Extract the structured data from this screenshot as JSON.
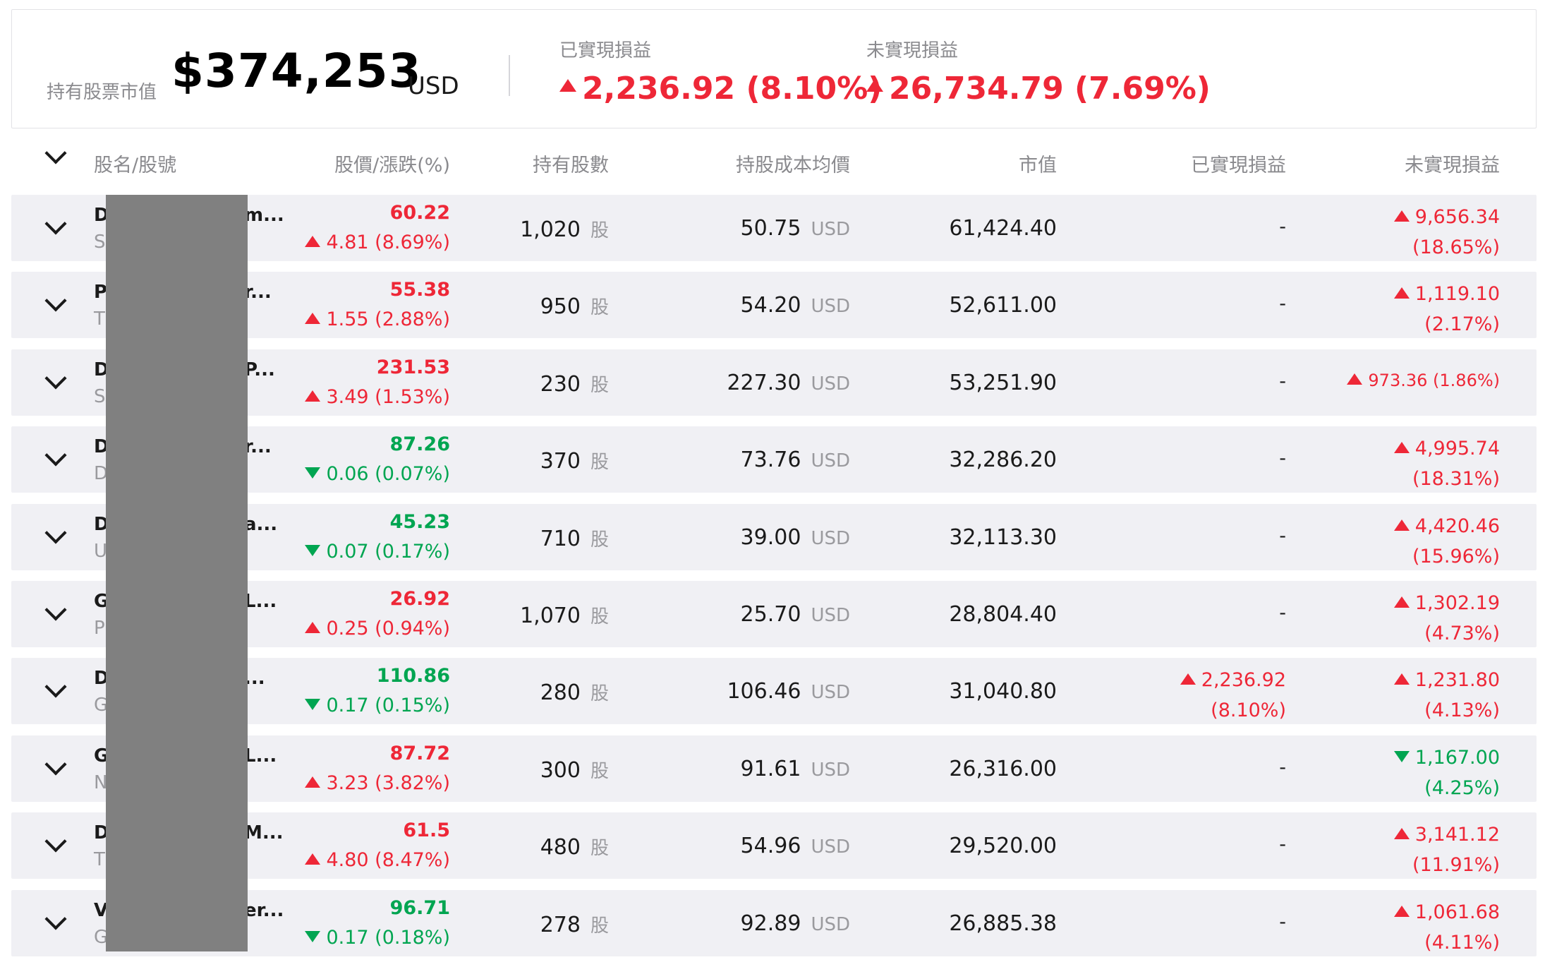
{
  "summary": {
    "label": "持有股票市值",
    "value": "$374,253",
    "currency": "USD",
    "realized_label": "已實現損益",
    "realized_value": "2,236.92 (8.10%)",
    "unrealized_label": "未實現損益",
    "unrealized_value": "26,734.79 (7.69%)"
  },
  "columns": {
    "name": "股名/股號",
    "price": "股價/漲跌(%)",
    "shares": "持有股數",
    "avg_cost": "持股成本均價",
    "market_value": "市值",
    "realized": "已實現損益",
    "unrealized": "未實現損益"
  },
  "share_unit": "股",
  "cost_currency": "USD",
  "colors": {
    "up": "#ee2737",
    "down": "#00a551",
    "row_bg": "#f0f0f4",
    "redaction": "#808080"
  },
  "rows": [
    {
      "name_start": "D",
      "name_end": "m...",
      "code_start": "S",
      "price": "60.22",
      "dir": "up",
      "change": "4.81",
      "pct": "(8.69%)",
      "shares": "1,020",
      "cost": "50.75",
      "mkt": "61,424.40",
      "realized": "-",
      "realized_pct": "",
      "realized_dir": "",
      "unrealized": "9,656.34",
      "unrealized_pct": "(18.65%)",
      "unrealized_dir": "up"
    },
    {
      "name_start": "P",
      "name_end": "r...",
      "code_start": "T",
      "price": "55.38",
      "dir": "up",
      "change": "1.55",
      "pct": "(2.88%)",
      "shares": "950",
      "cost": "54.20",
      "mkt": "52,611.00",
      "realized": "-",
      "realized_pct": "",
      "realized_dir": "",
      "unrealized": "1,119.10",
      "unrealized_pct": "(2.17%)",
      "unrealized_dir": "up"
    },
    {
      "name_start": "D",
      "name_end": "P...",
      "code_start": "S",
      "price": "231.53",
      "dir": "up",
      "change": "3.49",
      "pct": "(1.53%)",
      "shares": "230",
      "cost": "227.30",
      "mkt": "53,251.90",
      "realized": "-",
      "realized_pct": "",
      "realized_dir": "",
      "unrealized": "973.36",
      "unrealized_pct": "(1.86%)",
      "unrealized_dir": "up",
      "unrealized_single": true
    },
    {
      "name_start": "D",
      "name_end": "r...",
      "code_start": "D",
      "price": "87.26",
      "dir": "down",
      "change": "0.06",
      "pct": "(0.07%)",
      "shares": "370",
      "cost": "73.76",
      "mkt": "32,286.20",
      "realized": "-",
      "realized_pct": "",
      "realized_dir": "",
      "unrealized": "4,995.74",
      "unrealized_pct": "(18.31%)",
      "unrealized_dir": "up"
    },
    {
      "name_start": "D",
      "name_end": "a...",
      "code_start": "U",
      "price": "45.23",
      "dir": "down",
      "change": "0.07",
      "pct": "(0.17%)",
      "shares": "710",
      "cost": "39.00",
      "mkt": "32,113.30",
      "realized": "-",
      "realized_pct": "",
      "realized_dir": "",
      "unrealized": "4,420.46",
      "unrealized_pct": "(15.96%)",
      "unrealized_dir": "up"
    },
    {
      "name_start": "G",
      "name_end": "L...",
      "code_start": "P",
      "price": "26.92",
      "dir": "up",
      "change": "0.25",
      "pct": "(0.94%)",
      "shares": "1,070",
      "cost": "25.70",
      "mkt": "28,804.40",
      "realized": "-",
      "realized_pct": "",
      "realized_dir": "",
      "unrealized": "1,302.19",
      "unrealized_pct": "(4.73%)",
      "unrealized_dir": "up"
    },
    {
      "name_start": "D",
      "name_end": "...",
      "code_start": "G",
      "price": "110.86",
      "dir": "down",
      "change": "0.17",
      "pct": "(0.15%)",
      "shares": "280",
      "cost": "106.46",
      "mkt": "31,040.80",
      "realized": "2,236.92",
      "realized_pct": "(8.10%)",
      "realized_dir": "up",
      "unrealized": "1,231.80",
      "unrealized_pct": "(4.13%)",
      "unrealized_dir": "up"
    },
    {
      "name_start": "G",
      "name_end": "L...",
      "code_start": "N",
      "price": "87.72",
      "dir": "up",
      "change": "3.23",
      "pct": "(3.82%)",
      "shares": "300",
      "cost": "91.61",
      "mkt": "26,316.00",
      "realized": "-",
      "realized_pct": "",
      "realized_dir": "",
      "unrealized": "1,167.00",
      "unrealized_pct": "(4.25%)",
      "unrealized_dir": "down"
    },
    {
      "name_start": "D",
      "name_end": "M...",
      "code_start": "T",
      "price": "61.5",
      "dir": "up",
      "change": "4.80",
      "pct": "(8.47%)",
      "shares": "480",
      "cost": "54.96",
      "mkt": "29,520.00",
      "realized": "-",
      "realized_pct": "",
      "realized_dir": "",
      "unrealized": "3,141.12",
      "unrealized_pct": "(11.91%)",
      "unrealized_dir": "up"
    },
    {
      "name_start": "V",
      "name_end": "er...",
      "code_start": "G",
      "price": "96.71",
      "dir": "down",
      "change": "0.17",
      "pct": "(0.18%)",
      "shares": "278",
      "cost": "92.89",
      "mkt": "26,885.38",
      "realized": "-",
      "realized_pct": "",
      "realized_dir": "",
      "unrealized": "1,061.68",
      "unrealized_pct": "(4.11%)",
      "unrealized_dir": "up"
    }
  ]
}
